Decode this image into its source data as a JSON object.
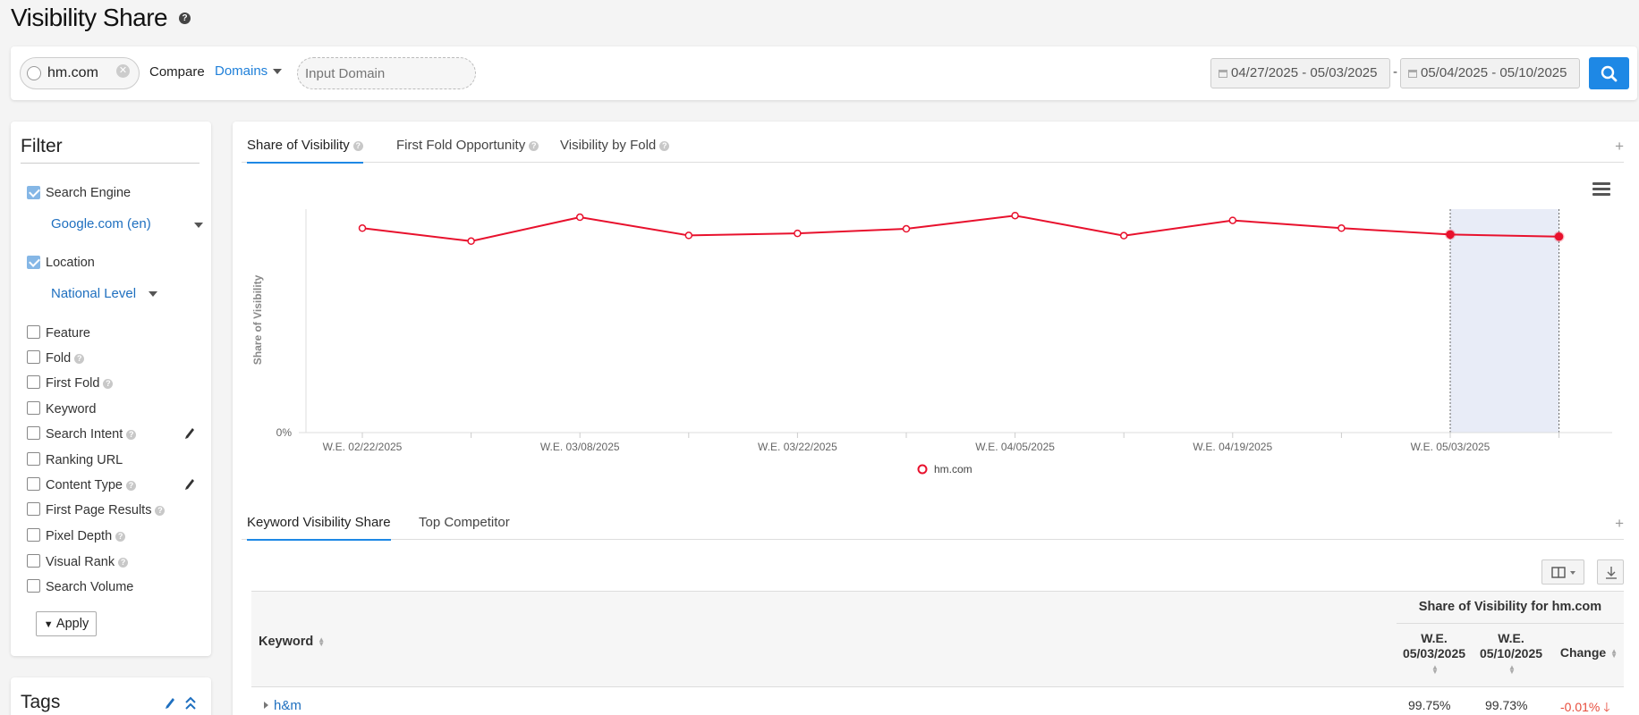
{
  "page": {
    "title": "Visibility Share"
  },
  "toolbar": {
    "domain": "hm.com",
    "compare_label": "Compare",
    "domains_dropdown": "Domains",
    "input_placeholder": "Input Domain",
    "date_range_1": "04/27/2025 - 05/03/2025",
    "date_separator": "-",
    "date_range_2": "05/04/2025 - 05/10/2025"
  },
  "filter": {
    "title": "Filter",
    "items": [
      {
        "label": "Search Engine",
        "checked": true,
        "value": "Google.com (en)"
      },
      {
        "label": "Location",
        "checked": true,
        "value": "National Level"
      },
      {
        "label": "Feature",
        "checked": false
      },
      {
        "label": "Fold",
        "checked": false,
        "help": true
      },
      {
        "label": "First Fold",
        "checked": false,
        "help": true
      },
      {
        "label": "Keyword",
        "checked": false
      },
      {
        "label": "Search Intent",
        "checked": false,
        "help": true,
        "edit": true
      },
      {
        "label": "Ranking URL",
        "checked": false
      },
      {
        "label": "Content Type",
        "checked": false,
        "help": true,
        "edit": true
      },
      {
        "label": "First Page Results",
        "checked": false,
        "help": true
      },
      {
        "label": "Pixel Depth",
        "checked": false,
        "help": true
      },
      {
        "label": "Visual Rank",
        "checked": false,
        "help": true
      },
      {
        "label": "Search Volume",
        "checked": false
      }
    ],
    "apply_label": "Apply"
  },
  "tags": {
    "title": "Tags"
  },
  "chart_tabs": [
    {
      "label": "Share of Visibility",
      "active": true
    },
    {
      "label": "First Fold Opportunity",
      "active": false
    },
    {
      "label": "Visibility by Fold",
      "active": false
    }
  ],
  "chart_data": {
    "type": "line",
    "ylabel": "Share of Visibility",
    "y_tick_labels": [
      "0%"
    ],
    "x_tick_labels": [
      "W.E. 02/22/2025",
      "W.E. 03/08/2025",
      "W.E. 03/22/2025",
      "W.E. 04/05/2025",
      "W.E. 04/19/2025",
      "W.E. 05/03/2025"
    ],
    "x": [
      "W.E. 02/22/2025",
      "W.E. 03/01/2025",
      "W.E. 03/08/2025",
      "W.E. 03/15/2025",
      "W.E. 03/22/2025",
      "W.E. 03/29/2025",
      "W.E. 04/05/2025",
      "W.E. 04/12/2025",
      "W.E. 04/19/2025",
      "W.E. 04/26/2025",
      "W.E. 05/03/2025",
      "W.E. 05/10/2025"
    ],
    "series": [
      {
        "name": "hm.com",
        "color": "#e8112d",
        "values": [
          89.7,
          84.0,
          94.5,
          86.5,
          87.4,
          89.4,
          95.2,
          86.4,
          93.1,
          89.7,
          86.9,
          86.0
        ]
      }
    ],
    "highlight_range": [
      "W.E. 05/03/2025",
      "W.E. 05/10/2025"
    ],
    "highlight_color": "#e8ecf7",
    "legend": "bottom-center",
    "grid": false
  },
  "table_tabs": [
    {
      "label": "Keyword Visibility Share",
      "active": true
    },
    {
      "label": "Top Competitor",
      "active": false
    }
  ],
  "table": {
    "keyword_header": "Keyword",
    "group_header": "Share of Visibility for hm.com",
    "col_1_line1": "W.E.",
    "col_1_line2": "05/03/2025",
    "col_2_line1": "W.E.",
    "col_2_line2": "05/10/2025",
    "col_3": "Change",
    "rows": [
      {
        "keyword": "h&m",
        "val_1": "99.75%",
        "val_2": "99.73%",
        "change": "-0.01%"
      }
    ]
  },
  "colors": {
    "accent": "#1e88e5",
    "link": "#1e6fbf",
    "series": "#e8112d",
    "negative": "#e74c3c"
  }
}
